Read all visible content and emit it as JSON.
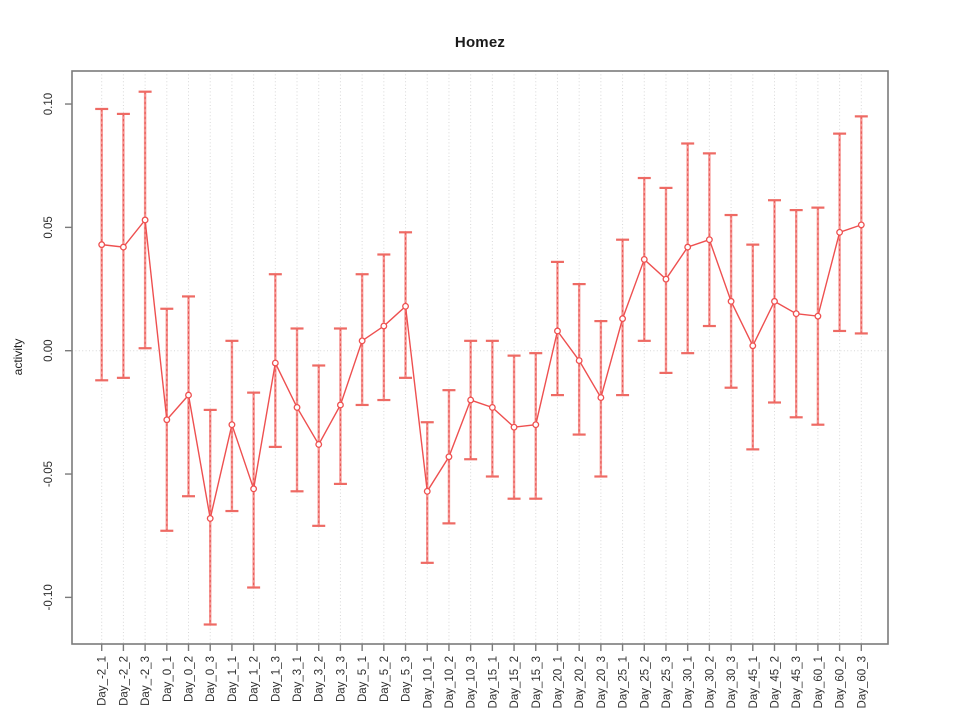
{
  "chart_data": {
    "type": "line",
    "subtype": "points-with-error-bars",
    "title": "Homez",
    "xlabel": "",
    "ylabel": "activity",
    "legend_position": "none",
    "grid": {
      "vertical": "dotted line at every category",
      "horizontal": "dotted line at y=0 only"
    },
    "ylim": [
      -0.119,
      0.113
    ],
    "yticks": [
      0.1,
      0.05,
      0.0,
      -0.05,
      -0.1
    ],
    "ytick_labels": [
      "0.10",
      "0.05",
      "0.00",
      "-0.05",
      "-0.10"
    ],
    "categories": [
      "Day_-2_1",
      "Day_-2_2",
      "Day_-2_3",
      "Day_0_1",
      "Day_0_2",
      "Day_0_3",
      "Day_1_1",
      "Day_1_2",
      "Day_1_3",
      "Day_3_1",
      "Day_3_2",
      "Day_3_3",
      "Day_5_1",
      "Day_5_2",
      "Day_5_3",
      "Day_10_1",
      "Day_10_2",
      "Day_10_3",
      "Day_15_1",
      "Day_15_2",
      "Day_15_3",
      "Day_20_1",
      "Day_20_2",
      "Day_20_3",
      "Day_25_1",
      "Day_25_2",
      "Day_25_3",
      "Day_30_1",
      "Day_30_2",
      "Day_30_3",
      "Day_45_1",
      "Day_45_2",
      "Day_45_3",
      "Day_60_1",
      "Day_60_2",
      "Day_60_3"
    ],
    "series": [
      {
        "name": "activity",
        "values": [
          0.043,
          0.042,
          0.053,
          -0.028,
          -0.018,
          -0.068,
          -0.03,
          -0.056,
          -0.005,
          -0.023,
          -0.038,
          -0.022,
          0.004,
          0.01,
          0.018,
          -0.057,
          -0.043,
          -0.02,
          -0.023,
          -0.031,
          -0.03,
          0.008,
          -0.004,
          -0.019,
          0.013,
          0.037,
          0.029,
          0.042,
          0.045,
          0.02,
          0.002,
          0.02,
          0.015,
          0.014,
          0.048,
          0.051
        ],
        "lower": [
          -0.012,
          -0.011,
          0.001,
          -0.073,
          -0.059,
          -0.111,
          -0.065,
          -0.096,
          -0.039,
          -0.057,
          -0.071,
          -0.054,
          -0.022,
          -0.02,
          -0.011,
          -0.086,
          -0.07,
          -0.044,
          -0.051,
          -0.06,
          -0.06,
          -0.018,
          -0.034,
          -0.051,
          -0.018,
          0.004,
          -0.009,
          -0.001,
          0.01,
          -0.015,
          -0.04,
          -0.021,
          -0.027,
          -0.03,
          0.008,
          0.007
        ],
        "upper": [
          0.098,
          0.096,
          0.105,
          0.017,
          0.022,
          -0.024,
          0.004,
          -0.017,
          0.031,
          0.009,
          -0.006,
          0.009,
          0.031,
          0.039,
          0.048,
          -0.029,
          -0.016,
          0.004,
          0.004,
          -0.002,
          -0.001,
          0.036,
          0.027,
          0.012,
          0.045,
          0.07,
          0.066,
          0.084,
          0.08,
          0.055,
          0.043,
          0.061,
          0.057,
          0.058,
          0.088,
          0.095
        ]
      }
    ],
    "colors": {
      "point_and_line": "#ee5050",
      "error_stem": "#f59592",
      "error_stem_dash": "#e85552",
      "error_cap": "#ee6a64",
      "gridline": "#d8d8d8",
      "axis_box": "#7b7b7b",
      "tick_label": "#2f2f2f",
      "background": "#ffffff"
    }
  }
}
